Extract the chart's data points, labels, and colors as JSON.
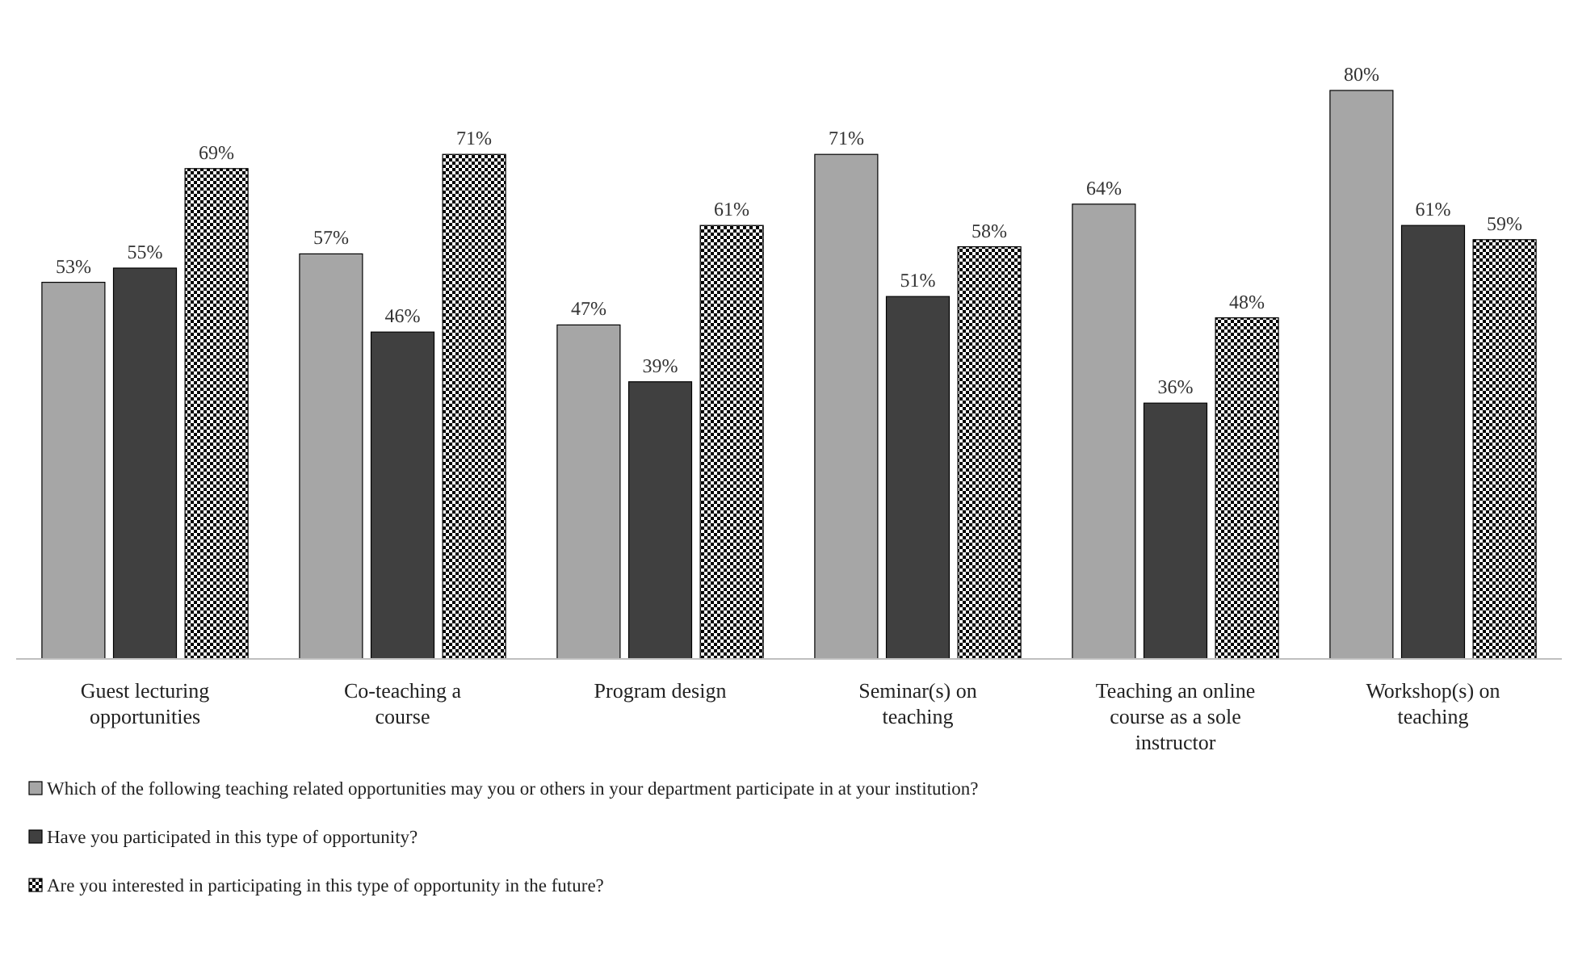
{
  "chart_data": {
    "type": "bar",
    "categories": [
      "Guest lecturing opportunities",
      "Co-teaching a course",
      "Program design",
      "Seminar(s) on teaching",
      "Teaching an online course as a sole instructor",
      "Workshop(s) on teaching"
    ],
    "series": [
      {
        "name": "Which of the following teaching related opportunities may you or others in your department participate in at your institution?",
        "color": "#a6a6a6",
        "values": [
          53,
          57,
          47,
          71,
          64,
          80
        ],
        "value_labels": [
          "53%",
          "57%",
          "47%",
          "71%",
          "64%",
          "80%"
        ]
      },
      {
        "name": "Have you participated in this type of opportunity?",
        "color": "#404040",
        "values": [
          55,
          46,
          39,
          51,
          36,
          61
        ],
        "value_labels": [
          "55%",
          "46%",
          "39%",
          "51%",
          "36%",
          "61%"
        ]
      },
      {
        "name": "Are you interested in participating in this type of opportunity in the future?",
        "color": "#000000",
        "values": [
          69,
          71,
          61,
          58,
          48,
          59
        ],
        "value_labels": [
          "69%",
          "71%",
          "61%",
          "58%",
          "48%",
          "59%"
        ]
      }
    ],
    "tick_labels": "x",
    "legend": "bottom"
  }
}
